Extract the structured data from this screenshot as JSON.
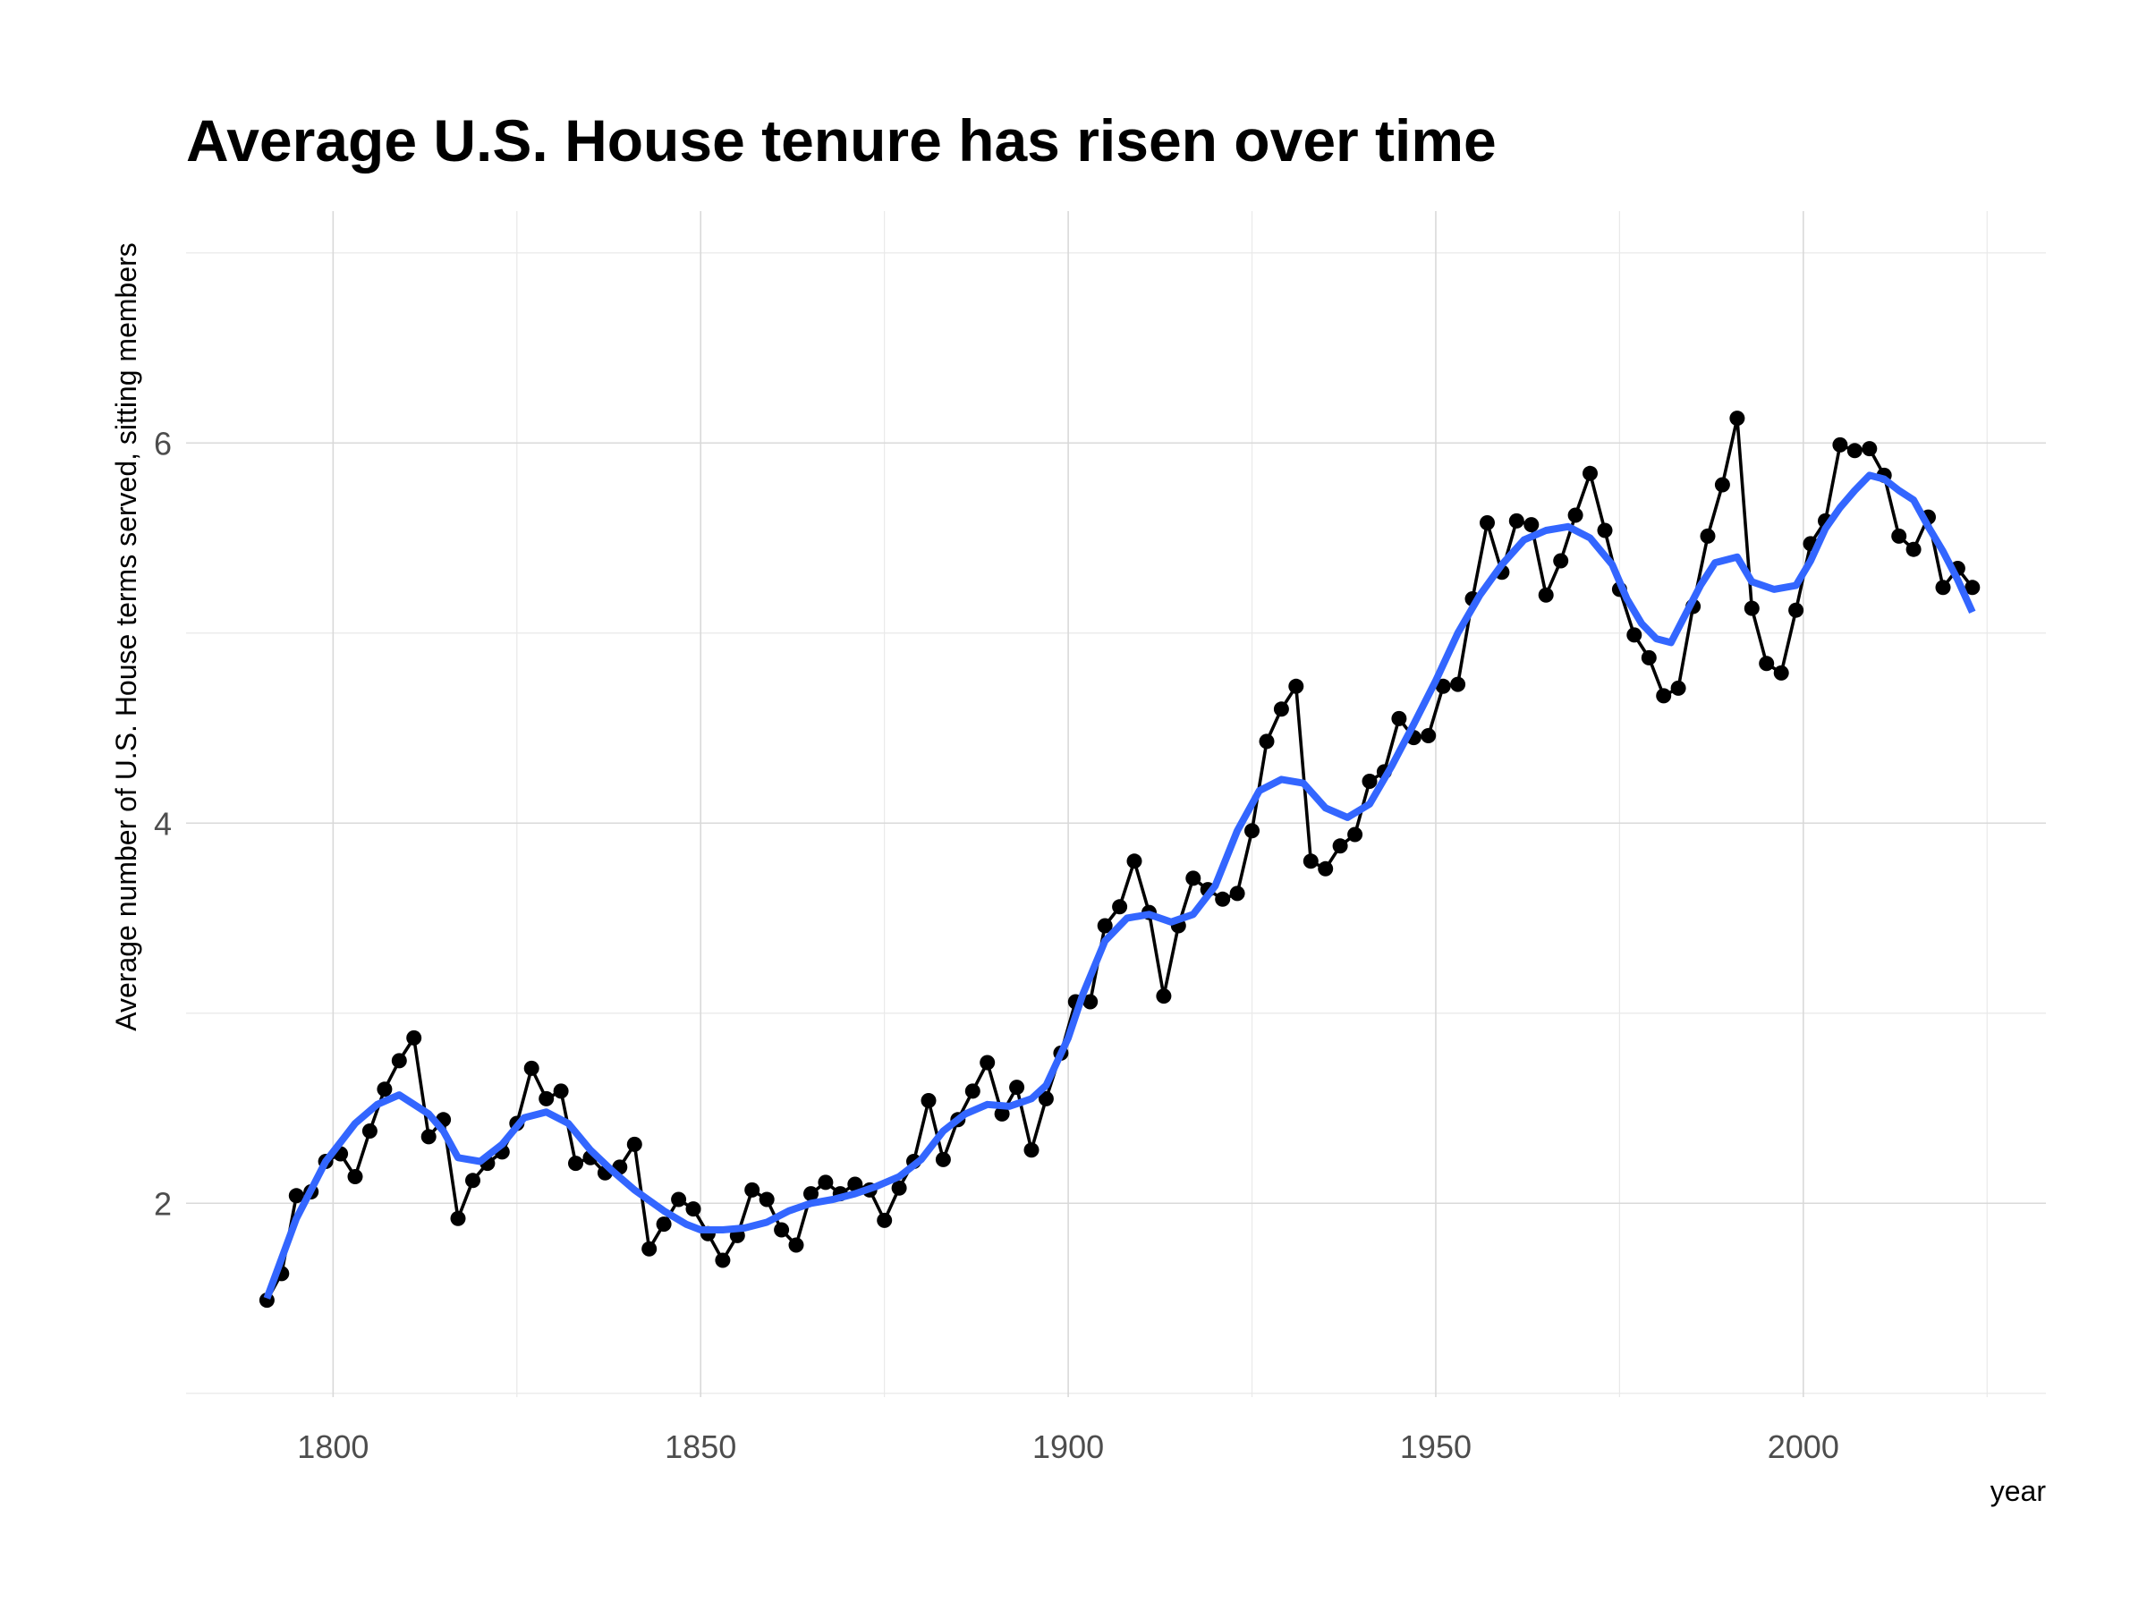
{
  "chart_data": {
    "type": "line",
    "title": "Average U.S. House tenure has risen over time",
    "xlabel": "year",
    "ylabel": "Average number of U.S. House terms served, sitting members",
    "xlim": [
      1780,
      2033
    ],
    "ylim": [
      0.98,
      7.22
    ],
    "xticks": [
      1800,
      1850,
      1900,
      1950,
      2000
    ],
    "yticks": [
      2,
      4,
      6
    ],
    "grid": true,
    "legend": "none",
    "series": [
      {
        "kind": "line+points",
        "color": "#000000",
        "points": [
          [
            1791,
            1.49
          ],
          [
            1793,
            1.63
          ],
          [
            1795,
            2.04
          ],
          [
            1797,
            2.06
          ],
          [
            1799,
            2.22
          ],
          [
            1801,
            2.26
          ],
          [
            1803,
            2.14
          ],
          [
            1805,
            2.38
          ],
          [
            1807,
            2.6
          ],
          [
            1809,
            2.75
          ],
          [
            1811,
            2.87
          ],
          [
            1813,
            2.35
          ],
          [
            1815,
            2.44
          ],
          [
            1817,
            1.92
          ],
          [
            1819,
            2.12
          ],
          [
            1821,
            2.21
          ],
          [
            1823,
            2.27
          ],
          [
            1825,
            2.42
          ],
          [
            1827,
            2.71
          ],
          [
            1829,
            2.55
          ],
          [
            1831,
            2.59
          ],
          [
            1833,
            2.21
          ],
          [
            1835,
            2.24
          ],
          [
            1837,
            2.16
          ],
          [
            1839,
            2.19
          ],
          [
            1841,
            2.31
          ],
          [
            1843,
            1.76
          ],
          [
            1845,
            1.89
          ],
          [
            1847,
            2.02
          ],
          [
            1849,
            1.97
          ],
          [
            1851,
            1.84
          ],
          [
            1853,
            1.7
          ],
          [
            1855,
            1.83
          ],
          [
            1857,
            2.07
          ],
          [
            1859,
            2.02
          ],
          [
            1861,
            1.86
          ],
          [
            1863,
            1.78
          ],
          [
            1865,
            2.05
          ],
          [
            1867,
            2.11
          ],
          [
            1869,
            2.05
          ],
          [
            1871,
            2.1
          ],
          [
            1873,
            2.07
          ],
          [
            1875,
            1.91
          ],
          [
            1877,
            2.08
          ],
          [
            1879,
            2.22
          ],
          [
            1881,
            2.54
          ],
          [
            1883,
            2.23
          ],
          [
            1885,
            2.44
          ],
          [
            1887,
            2.59
          ],
          [
            1889,
            2.74
          ],
          [
            1891,
            2.47
          ],
          [
            1893,
            2.61
          ],
          [
            1895,
            2.28
          ],
          [
            1897,
            2.55
          ],
          [
            1899,
            2.79
          ],
          [
            1901,
            3.06
          ],
          [
            1903,
            3.06
          ],
          [
            1905,
            3.46
          ],
          [
            1907,
            3.56
          ],
          [
            1909,
            3.8
          ],
          [
            1911,
            3.53
          ],
          [
            1913,
            3.09
          ],
          [
            1915,
            3.46
          ],
          [
            1917,
            3.71
          ],
          [
            1919,
            3.65
          ],
          [
            1921,
            3.6
          ],
          [
            1923,
            3.63
          ],
          [
            1925,
            3.96
          ],
          [
            1927,
            4.43
          ],
          [
            1929,
            4.6
          ],
          [
            1931,
            4.72
          ],
          [
            1933,
            3.8
          ],
          [
            1935,
            3.76
          ],
          [
            1937,
            3.88
          ],
          [
            1939,
            3.94
          ],
          [
            1941,
            4.22
          ],
          [
            1943,
            4.27
          ],
          [
            1945,
            4.55
          ],
          [
            1947,
            4.45
          ],
          [
            1949,
            4.46
          ],
          [
            1951,
            4.72
          ],
          [
            1953,
            4.73
          ],
          [
            1955,
            5.18
          ],
          [
            1957,
            5.58
          ],
          [
            1959,
            5.32
          ],
          [
            1961,
            5.59
          ],
          [
            1963,
            5.57
          ],
          [
            1965,
            5.2
          ],
          [
            1967,
            5.38
          ],
          [
            1969,
            5.62
          ],
          [
            1971,
            5.84
          ],
          [
            1973,
            5.54
          ],
          [
            1975,
            5.23
          ],
          [
            1977,
            4.99
          ],
          [
            1979,
            4.87
          ],
          [
            1981,
            4.67
          ],
          [
            1983,
            4.71
          ],
          [
            1985,
            5.14
          ],
          [
            1987,
            5.51
          ],
          [
            1989,
            5.78
          ],
          [
            1991,
            6.13
          ],
          [
            1993,
            5.13
          ],
          [
            1995,
            4.84
          ],
          [
            1997,
            4.79
          ],
          [
            1999,
            5.12
          ],
          [
            2001,
            5.47
          ],
          [
            2003,
            5.59
          ],
          [
            2005,
            5.99
          ],
          [
            2007,
            5.96
          ],
          [
            2009,
            5.97
          ],
          [
            2011,
            5.83
          ],
          [
            2013,
            5.51
          ],
          [
            2015,
            5.44
          ],
          [
            2017,
            5.61
          ],
          [
            2019,
            5.24
          ],
          [
            2021,
            5.34
          ],
          [
            2023,
            5.24
          ]
        ]
      },
      {
        "kind": "smooth",
        "color": "#3366FF",
        "points": [
          [
            1791,
            1.5
          ],
          [
            1795,
            1.92
          ],
          [
            1799,
            2.22
          ],
          [
            1803,
            2.42
          ],
          [
            1806,
            2.52
          ],
          [
            1809,
            2.57
          ],
          [
            1813,
            2.47
          ],
          [
            1815,
            2.38
          ],
          [
            1817,
            2.24
          ],
          [
            1820,
            2.22
          ],
          [
            1823,
            2.31
          ],
          [
            1826,
            2.45
          ],
          [
            1829,
            2.48
          ],
          [
            1832,
            2.42
          ],
          [
            1835,
            2.28
          ],
          [
            1838,
            2.17
          ],
          [
            1841,
            2.07
          ],
          [
            1845,
            1.96
          ],
          [
            1848,
            1.89
          ],
          [
            1850,
            1.86
          ],
          [
            1853,
            1.86
          ],
          [
            1856,
            1.87
          ],
          [
            1859,
            1.9
          ],
          [
            1862,
            1.96
          ],
          [
            1865,
            2.0
          ],
          [
            1868,
            2.02
          ],
          [
            1871,
            2.05
          ],
          [
            1874,
            2.09
          ],
          [
            1877,
            2.14
          ],
          [
            1880,
            2.23
          ],
          [
            1883,
            2.38
          ],
          [
            1886,
            2.47
          ],
          [
            1889,
            2.52
          ],
          [
            1892,
            2.51
          ],
          [
            1895,
            2.55
          ],
          [
            1897,
            2.62
          ],
          [
            1900,
            2.87
          ],
          [
            1902,
            3.1
          ],
          [
            1905,
            3.38
          ],
          [
            1908,
            3.5
          ],
          [
            1911,
            3.52
          ],
          [
            1914,
            3.48
          ],
          [
            1917,
            3.52
          ],
          [
            1920,
            3.67
          ],
          [
            1923,
            3.96
          ],
          [
            1926,
            4.17
          ],
          [
            1929,
            4.23
          ],
          [
            1932,
            4.21
          ],
          [
            1935,
            4.08
          ],
          [
            1938,
            4.03
          ],
          [
            1941,
            4.1
          ],
          [
            1944,
            4.3
          ],
          [
            1947,
            4.52
          ],
          [
            1950,
            4.75
          ],
          [
            1953,
            5.0
          ],
          [
            1956,
            5.2
          ],
          [
            1959,
            5.36
          ],
          [
            1962,
            5.49
          ],
          [
            1965,
            5.54
          ],
          [
            1968,
            5.56
          ],
          [
            1971,
            5.5
          ],
          [
            1974,
            5.36
          ],
          [
            1976,
            5.18
          ],
          [
            1978,
            5.05
          ],
          [
            1980,
            4.97
          ],
          [
            1982,
            4.95
          ],
          [
            1984,
            5.1
          ],
          [
            1986,
            5.25
          ],
          [
            1988,
            5.37
          ],
          [
            1991,
            5.4
          ],
          [
            1993,
            5.27
          ],
          [
            1996,
            5.23
          ],
          [
            1999,
            5.25
          ],
          [
            2001,
            5.38
          ],
          [
            2003,
            5.55
          ],
          [
            2005,
            5.66
          ],
          [
            2007,
            5.75
          ],
          [
            2009,
            5.83
          ],
          [
            2011,
            5.81
          ],
          [
            2013,
            5.75
          ],
          [
            2015,
            5.7
          ],
          [
            2017,
            5.56
          ],
          [
            2019,
            5.43
          ],
          [
            2021,
            5.28
          ],
          [
            2023,
            5.11
          ]
        ]
      }
    ]
  }
}
